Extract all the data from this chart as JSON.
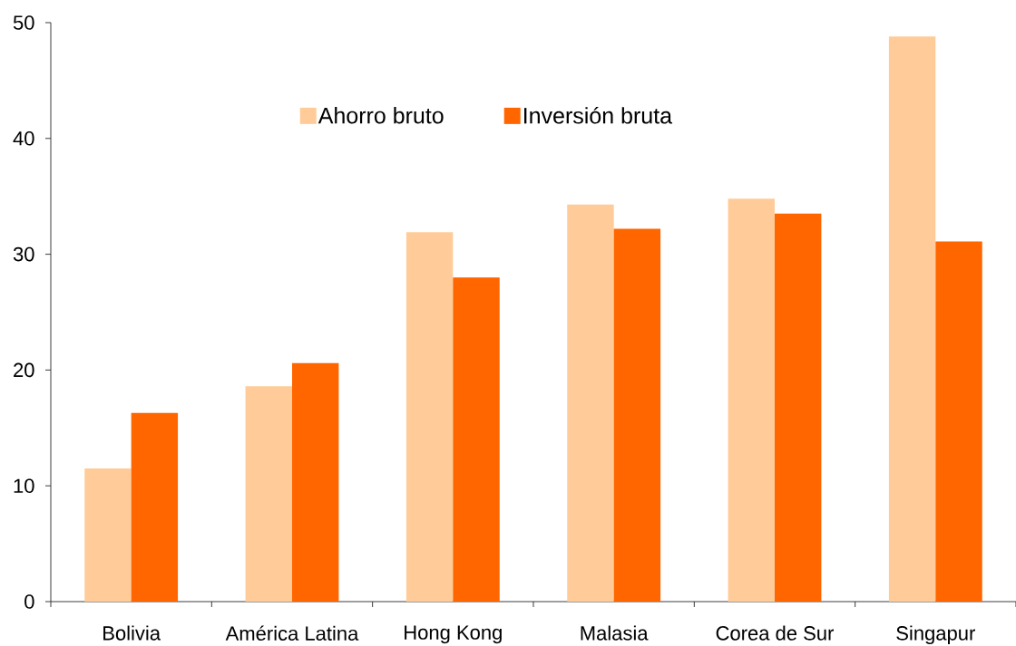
{
  "chart_data": {
    "type": "bar",
    "categories": [
      "Bolivia",
      "América Latina",
      "Hong Kong",
      "Malasia",
      "Corea de Sur",
      "Singapur"
    ],
    "series": [
      {
        "name": "Ahorro bruto",
        "color": "#ffcc99",
        "values": [
          11.5,
          18.6,
          31.9,
          34.3,
          34.8,
          48.8
        ]
      },
      {
        "name": "Inversión bruta",
        "color": "#ff6600",
        "values": [
          16.3,
          20.6,
          28.0,
          32.2,
          33.5,
          31.1
        ]
      }
    ],
    "ylim": [
      0,
      50
    ],
    "yticks": [
      0,
      10,
      20,
      30,
      40,
      50
    ],
    "legend": "top"
  }
}
